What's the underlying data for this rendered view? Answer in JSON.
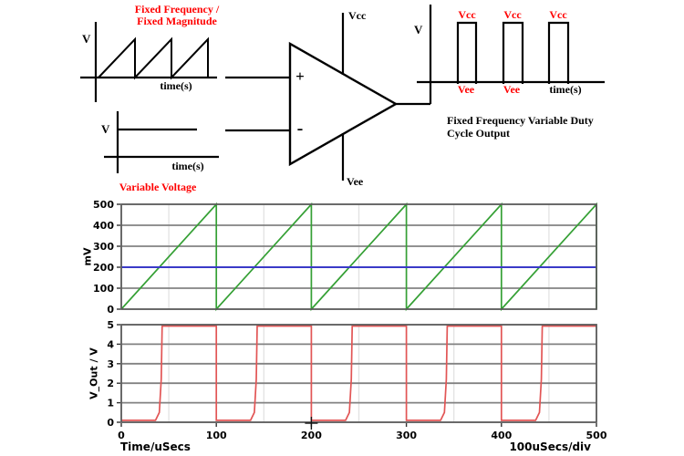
{
  "colors": {
    "accent_red": "#ff0000",
    "line_black": "#000000",
    "grid_major": "#828282",
    "grid_minor": "#e2e2e2",
    "plot_border": "#5a5a5a",
    "sawtooth_green": "#35a035",
    "reference_blue": "#3a3ac8",
    "output_red": "#e25555"
  },
  "diagram": {
    "sawtooth_graph": {
      "title_line1": "Fixed Frequency /",
      "title_line2": "Fixed Magnitude",
      "y_label": "V",
      "x_label": "time(s)"
    },
    "dc_graph": {
      "y_label": "V",
      "x_label": "time(s)",
      "caption": "Variable Voltage"
    },
    "opamp": {
      "plus_label": "+",
      "minus_label": "-",
      "vcc_label": "Vcc",
      "vee_label": "Vee"
    },
    "output_graph": {
      "y_label": "V",
      "x_label": "time(s)",
      "vcc_labels": [
        "Vcc",
        "Vcc",
        "Vcc"
      ],
      "vee_labels": [
        "Vee",
        "Vee"
      ],
      "caption_line1": "Fixed Frequency Variable Duty",
      "caption_line2": "Cycle Output"
    }
  },
  "chart_data": [
    {
      "type": "line",
      "title": "",
      "ylabel": "mV",
      "xlabel": "",
      "ylim": [
        0,
        500
      ],
      "xlim": [
        0,
        500
      ],
      "yticks": [
        0,
        100,
        200,
        300,
        400,
        500
      ],
      "ytick_labels": [
        "0",
        "100",
        "200",
        "300",
        "400",
        "500"
      ],
      "grid": {
        "v_minor_step": 50
      },
      "legend": "none",
      "series": [
        {
          "name": "sawtooth_carrier",
          "color_key": "sawtooth_green",
          "width": 1.7,
          "points": [
            [
              0,
              0
            ],
            [
              100,
              500
            ],
            [
              100,
              0
            ],
            [
              200,
              500
            ],
            [
              200,
              0
            ],
            [
              300,
              500
            ],
            [
              300,
              0
            ],
            [
              400,
              500
            ],
            [
              400,
              0
            ],
            [
              500,
              500
            ],
            [
              500,
              0
            ]
          ]
        },
        {
          "name": "reference_200mV",
          "color_key": "reference_blue",
          "width": 2,
          "points": [
            [
              0,
              200
            ],
            [
              500,
              200
            ]
          ]
        }
      ]
    },
    {
      "type": "line",
      "title": "",
      "ylabel": "V_Out / V",
      "xlabel": "Time/uSecs",
      "x_scale_label": "100uSecs/div",
      "ylim": [
        0,
        5
      ],
      "xlim": [
        0,
        500
      ],
      "yticks": [
        0,
        1,
        2,
        3,
        4,
        5
      ],
      "ytick_labels": [
        "0",
        "1",
        "2",
        "3",
        "4",
        "5"
      ],
      "xticks": [
        0,
        100,
        200,
        300,
        400,
        500
      ],
      "xtick_labels": [
        "0",
        "100",
        "200",
        "300",
        "400",
        "500"
      ],
      "grid": {
        "v_minor_step": 50
      },
      "cursor_marker": {
        "x": 200,
        "y": 0
      },
      "legend": "none",
      "series": [
        {
          "name": "V_Out",
          "color_key": "output_red",
          "width": 1.7,
          "points": [
            [
              0,
              0.1
            ],
            [
              36,
              0.1
            ],
            [
              40,
              0.5
            ],
            [
              42,
              2.2
            ],
            [
              43,
              4.93
            ],
            [
              100,
              4.93
            ],
            [
              100,
              0.1
            ],
            [
              136,
              0.1
            ],
            [
              140,
              0.5
            ],
            [
              142,
              2.2
            ],
            [
              143,
              4.93
            ],
            [
              200,
              4.93
            ],
            [
              200,
              0.1
            ],
            [
              236,
              0.1
            ],
            [
              240,
              0.5
            ],
            [
              242,
              2.2
            ],
            [
              243,
              4.93
            ],
            [
              300,
              4.93
            ],
            [
              300,
              0.1
            ],
            [
              336,
              0.1
            ],
            [
              340,
              0.5
            ],
            [
              342,
              2.2
            ],
            [
              343,
              4.93
            ],
            [
              400,
              4.93
            ],
            [
              400,
              0.1
            ],
            [
              436,
              0.1
            ],
            [
              440,
              0.5
            ],
            [
              442,
              2.2
            ],
            [
              443,
              4.93
            ],
            [
              500,
              4.93
            ]
          ]
        }
      ]
    }
  ]
}
